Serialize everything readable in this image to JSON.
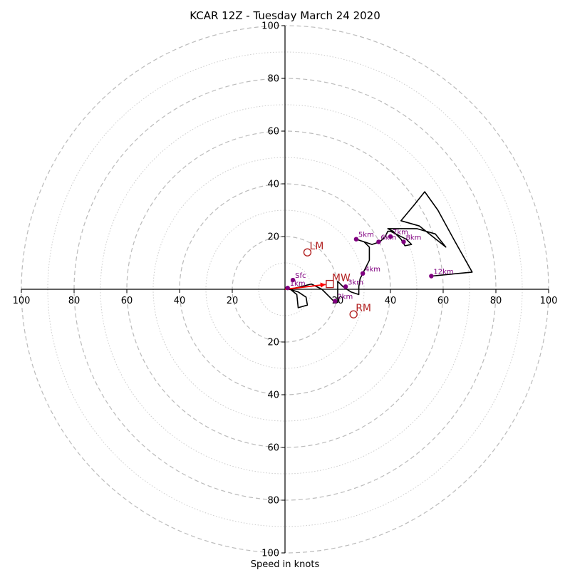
{
  "chart_data": {
    "type": "hodograph",
    "title": "KCAR 12Z - Tuesday March 24 2020",
    "xlabel": "Speed in knots",
    "units": "knots",
    "xlim": [
      -100,
      100
    ],
    "ylim": [
      -100,
      100
    ],
    "ring_spacing_major": 20,
    "ring_spacing_minor": 10,
    "axis_ticks": {
      "right": [
        {
          "value": 20,
          "label": "20"
        },
        {
          "value": 40,
          "label": "40"
        },
        {
          "value": 60,
          "label": "60"
        },
        {
          "value": 80,
          "label": "80"
        },
        {
          "value": 100,
          "label": "100"
        }
      ],
      "left": [
        {
          "value": 20,
          "label": "20"
        },
        {
          "value": 40,
          "label": "40"
        },
        {
          "value": 60,
          "label": "60"
        },
        {
          "value": 80,
          "label": "80"
        },
        {
          "value": 100,
          "label": "100"
        }
      ],
      "up": [
        {
          "value": 20,
          "label": "20"
        },
        {
          "value": 40,
          "label": "40"
        },
        {
          "value": 60,
          "label": "60"
        },
        {
          "value": 80,
          "label": "80"
        },
        {
          "value": 100,
          "label": "100"
        }
      ],
      "down": [
        {
          "value": 20,
          "label": "20"
        },
        {
          "value": 40,
          "label": "40"
        },
        {
          "value": 60,
          "label": "60"
        },
        {
          "value": 80,
          "label": "80"
        },
        {
          "value": 100,
          "label": "100"
        }
      ]
    },
    "hodograph_trace": [
      [
        0,
        0.5
      ],
      [
        5,
        -1
      ],
      [
        8,
        -3
      ],
      [
        8.5,
        -6
      ],
      [
        5,
        -7
      ],
      [
        4.5,
        -2
      ],
      [
        2,
        0
      ],
      [
        6,
        1
      ],
      [
        10,
        2
      ],
      [
        14,
        0
      ],
      [
        17,
        -3
      ],
      [
        19,
        -5
      ],
      [
        20,
        -5
      ],
      [
        20,
        -2
      ],
      [
        20,
        3
      ],
      [
        22,
        1
      ],
      [
        25,
        -1
      ],
      [
        28,
        -2
      ],
      [
        28,
        1
      ],
      [
        28.5,
        4
      ],
      [
        30,
        7
      ],
      [
        32,
        11
      ],
      [
        32,
        16
      ],
      [
        30,
        18
      ],
      [
        27,
        19
      ],
      [
        33,
        17
      ],
      [
        36,
        18
      ],
      [
        38,
        20
      ],
      [
        39,
        22
      ],
      [
        40,
        22
      ],
      [
        42,
        21
      ],
      [
        46,
        19
      ],
      [
        48,
        17
      ],
      [
        45.5,
        16.5
      ],
      [
        44,
        19
      ],
      [
        41,
        22
      ],
      [
        39,
        23
      ],
      [
        50,
        23
      ],
      [
        57,
        21
      ],
      [
        61,
        16
      ],
      [
        51,
        24
      ],
      [
        44,
        26
      ],
      [
        49,
        32
      ],
      [
        53,
        37
      ],
      [
        58,
        30
      ],
      [
        64,
        19
      ],
      [
        71,
        6.5
      ],
      [
        55.5,
        5
      ]
    ],
    "height_markers": [
      {
        "label": "Sfc",
        "u": 3,
        "v": 3.5
      },
      {
        "label": "1km",
        "u": 1,
        "v": 0.5
      },
      {
        "label": "2km",
        "u": 19,
        "v": -4.5
      },
      {
        "label": "3km",
        "u": 23,
        "v": 1
      },
      {
        "label": "4km",
        "u": 29.5,
        "v": 6
      },
      {
        "label": "5km",
        "u": 27,
        "v": 19
      },
      {
        "label": "6km",
        "u": 35.5,
        "v": 18
      },
      {
        "label": "7km",
        "u": 40,
        "v": 20
      },
      {
        "label": "8km",
        "u": 45,
        "v": 18
      },
      {
        "label": "12km",
        "u": 55.5,
        "v": 5
      }
    ],
    "storm_motion": [
      {
        "label": "LM",
        "u": 8.5,
        "v": 14,
        "marker": "circle"
      },
      {
        "label": "MW",
        "u": 17,
        "v": 2,
        "marker": "square"
      },
      {
        "label": "RM",
        "u": 26,
        "v": -9.5,
        "marker": "circle"
      }
    ],
    "motion_vector": {
      "from": [
        0,
        0
      ],
      "to": [
        17,
        2
      ]
    },
    "colors": {
      "trace": "#000000",
      "markers": "#800080",
      "motion": "#b22222",
      "vector": "#ff0000",
      "ring_major": "#bbbbbb",
      "ring_minor": "#cccccc"
    }
  }
}
